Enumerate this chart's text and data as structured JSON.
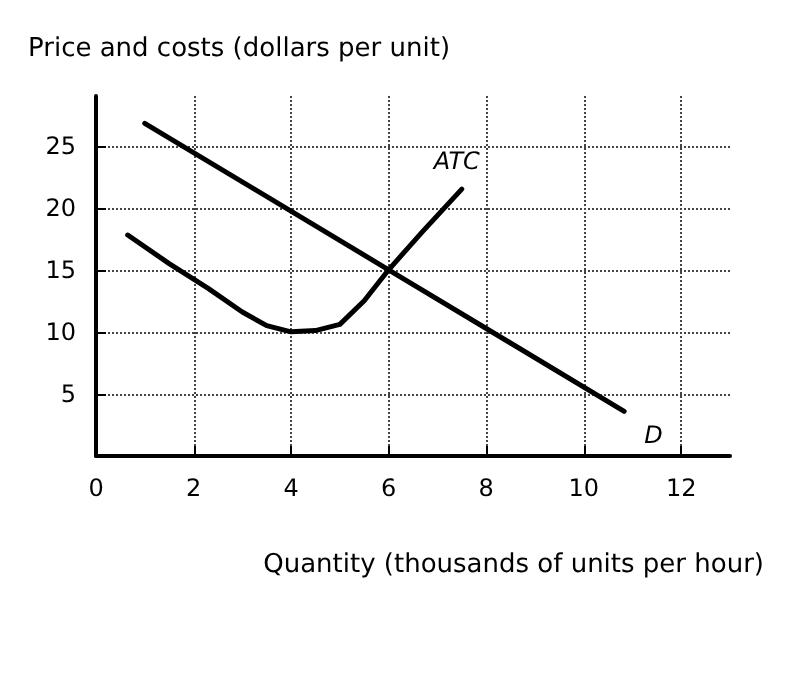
{
  "chart_data": {
    "type": "line",
    "xlabel": "Quantity (thousands of units per hour)",
    "ylabel": "Price and costs (dollars per unit)",
    "xlim": [
      0,
      13
    ],
    "xticks": [
      0,
      2,
      4,
      6,
      8,
      10,
      12
    ],
    "ylim": [
      0,
      29
    ],
    "yticks": [
      5,
      10,
      15,
      20,
      25
    ],
    "grid": true,
    "legend": false,
    "marker": "none",
    "line_style": "solid",
    "series": [
      {
        "name": "ATC",
        "color": "#000000",
        "x": [
          0.65,
          1.5,
          2.3,
          3,
          3.5,
          4,
          4.5,
          5,
          5.5,
          6,
          6.7,
          7.5
        ],
        "values": [
          17.8,
          15.5,
          13.5,
          11.6,
          10.5,
          10,
          10.1,
          10.6,
          12.5,
          15,
          18.1,
          21.5
        ]
      },
      {
        "name": "D",
        "color": "#000000",
        "x": [
          1,
          6,
          10.83
        ],
        "values": [
          26.8,
          15,
          3.6
        ]
      }
    ]
  }
}
